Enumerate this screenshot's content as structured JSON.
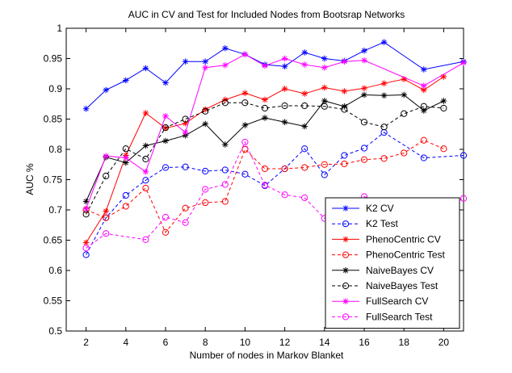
{
  "chart_data": {
    "type": "line",
    "title": "AUC in CV and Test for Included Nodes from Bootsrap Networks",
    "xlabel": "Number of nodes in Markov Blanket",
    "ylabel": "AUC %",
    "xlim": [
      1,
      21
    ],
    "ylim": [
      0.5,
      1
    ],
    "xticks": [
      2,
      4,
      6,
      8,
      10,
      12,
      14,
      16,
      18,
      20
    ],
    "yticks": [
      0.5,
      0.55,
      0.6,
      0.65,
      0.7,
      0.75,
      0.8,
      0.85,
      0.9,
      0.95,
      1
    ],
    "xtick_labels": [
      "2",
      "4",
      "6",
      "8",
      "10",
      "12",
      "14",
      "16",
      "18",
      "20"
    ],
    "ytick_labels": [
      "0.5",
      "0.55",
      "0.6",
      "0.65",
      "0.7",
      "0.75",
      "0.8",
      "0.85",
      "0.9",
      "0.95",
      "1"
    ],
    "grid": false,
    "legend_position": "bottom-right",
    "x": [
      2,
      3,
      4,
      5,
      6,
      7,
      8,
      9,
      10,
      11,
      12,
      13,
      14,
      15,
      16,
      17,
      19,
      21
    ],
    "series": [
      {
        "name": "K2 CV",
        "color": "#0000ff",
        "dash": "solid",
        "marker": "star",
        "points": [
          [
            2,
            0.867
          ],
          [
            3,
            0.898
          ],
          [
            4,
            0.914
          ],
          [
            5,
            0.934
          ],
          [
            6,
            0.91
          ],
          [
            7,
            0.945
          ],
          [
            8,
            0.945
          ],
          [
            9,
            0.967
          ],
          [
            10,
            0.957
          ],
          [
            11,
            0.94
          ],
          [
            12,
            0.937
          ],
          [
            13,
            0.96
          ],
          [
            14,
            0.95
          ],
          [
            15,
            0.946
          ],
          [
            16,
            0.963
          ],
          [
            17,
            0.977
          ],
          [
            19,
            0.932
          ],
          [
            21,
            0.945
          ]
        ]
      },
      {
        "name": "K2 Test",
        "color": "#0000ff",
        "dash": "dashed",
        "marker": "circle",
        "points": [
          [
            2,
            0.626
          ],
          [
            3,
            0.687
          ],
          [
            4,
            0.724
          ],
          [
            5,
            0.749
          ],
          [
            6,
            0.77
          ],
          [
            7,
            0.771
          ],
          [
            8,
            0.764
          ],
          [
            9,
            0.766
          ],
          [
            10,
            0.759
          ],
          [
            11,
            0.74
          ],
          [
            12,
            0.768
          ],
          [
            13,
            0.801
          ],
          [
            14,
            0.758
          ],
          [
            15,
            0.79
          ],
          [
            16,
            0.802
          ],
          [
            17,
            0.828
          ],
          [
            19,
            0.786
          ],
          [
            21,
            0.79
          ]
        ]
      },
      {
        "name": "PhenoCentric CV",
        "color": "#ff0000",
        "dash": "solid",
        "marker": "star",
        "points": [
          [
            2,
            0.646
          ],
          [
            3,
            0.698
          ],
          [
            4,
            0.79
          ],
          [
            5,
            0.86
          ],
          [
            6,
            0.835
          ],
          [
            7,
            0.843
          ],
          [
            8,
            0.866
          ],
          [
            9,
            0.882
          ],
          [
            10,
            0.893
          ],
          [
            11,
            0.882
          ],
          [
            12,
            0.9
          ],
          [
            13,
            0.892
          ],
          [
            14,
            0.902
          ],
          [
            15,
            0.896
          ],
          [
            16,
            0.901
          ],
          [
            17,
            0.909
          ],
          [
            18,
            0.916
          ],
          [
            19,
            0.898
          ],
          [
            20,
            0.92
          ]
        ]
      },
      {
        "name": "PhenoCentric Test",
        "color": "#ff0000",
        "dash": "dashed",
        "marker": "circle",
        "points": [
          [
            2,
            0.7
          ],
          [
            3,
            0.687
          ],
          [
            4,
            0.706
          ],
          [
            5,
            0.736
          ],
          [
            6,
            0.663
          ],
          [
            7,
            0.703
          ],
          [
            8,
            0.712
          ],
          [
            9,
            0.714
          ],
          [
            10,
            0.8
          ],
          [
            11,
            0.768
          ],
          [
            12,
            0.768
          ],
          [
            13,
            0.77
          ],
          [
            14,
            0.775
          ],
          [
            15,
            0.776
          ],
          [
            16,
            0.783
          ],
          [
            17,
            0.785
          ],
          [
            18,
            0.794
          ],
          [
            19,
            0.815
          ],
          [
            20,
            0.801
          ]
        ]
      },
      {
        "name": "NaiveBayes CV",
        "color": "#000000",
        "dash": "solid",
        "marker": "star",
        "points": [
          [
            2,
            0.714
          ],
          [
            3,
            0.787
          ],
          [
            4,
            0.778
          ],
          [
            5,
            0.806
          ],
          [
            6,
            0.814
          ],
          [
            7,
            0.823
          ],
          [
            8,
            0.842
          ],
          [
            9,
            0.808
          ],
          [
            10,
            0.84
          ],
          [
            11,
            0.852
          ],
          [
            12,
            0.845
          ],
          [
            13,
            0.838
          ],
          [
            14,
            0.88
          ],
          [
            15,
            0.871
          ],
          [
            16,
            0.89
          ],
          [
            17,
            0.889
          ],
          [
            18,
            0.89
          ],
          [
            19,
            0.864
          ],
          [
            20,
            0.88
          ]
        ]
      },
      {
        "name": "NaiveBayes Test",
        "color": "#000000",
        "dash": "dashed",
        "marker": "circle",
        "points": [
          [
            2,
            0.693
          ],
          [
            3,
            0.756
          ],
          [
            4,
            0.801
          ],
          [
            5,
            0.784
          ],
          [
            6,
            0.836
          ],
          [
            7,
            0.85
          ],
          [
            8,
            0.863
          ],
          [
            9,
            0.877
          ],
          [
            10,
            0.877
          ],
          [
            11,
            0.868
          ],
          [
            12,
            0.872
          ],
          [
            13,
            0.872
          ],
          [
            14,
            0.871
          ],
          [
            15,
            0.866
          ],
          [
            16,
            0.845
          ],
          [
            17,
            0.837
          ],
          [
            18,
            0.859
          ],
          [
            19,
            0.871
          ],
          [
            20,
            0.868
          ]
        ]
      },
      {
        "name": "FullSearch CV",
        "color": "#ff00ff",
        "dash": "solid",
        "marker": "star",
        "points": [
          [
            2,
            0.702
          ],
          [
            3,
            0.789
          ],
          [
            4,
            0.786
          ],
          [
            5,
            0.763
          ],
          [
            6,
            0.855
          ],
          [
            7,
            0.828
          ],
          [
            8,
            0.935
          ],
          [
            9,
            0.939
          ],
          [
            10,
            0.957
          ],
          [
            11,
            0.938
          ],
          [
            12,
            0.95
          ],
          [
            13,
            0.94
          ],
          [
            14,
            0.935
          ],
          [
            15,
            0.945
          ],
          [
            16,
            0.947
          ],
          [
            19,
            0.905
          ],
          [
            21,
            0.943
          ]
        ]
      },
      {
        "name": "FullSearch Test",
        "color": "#ff00ff",
        "dash": "dashed",
        "marker": "circle",
        "points": [
          [
            2,
            0.637
          ],
          [
            3,
            0.661
          ],
          [
            5,
            0.651
          ],
          [
            6,
            0.688
          ],
          [
            7,
            0.679
          ],
          [
            8,
            0.734
          ],
          [
            9,
            0.742
          ],
          [
            10,
            0.812
          ],
          [
            11,
            0.741
          ],
          [
            12,
            0.725
          ],
          [
            13,
            0.72
          ],
          [
            14,
            0.686
          ],
          [
            16,
            0.722
          ],
          [
            19,
            0.69
          ],
          [
            21,
            0.719
          ]
        ]
      }
    ]
  }
}
